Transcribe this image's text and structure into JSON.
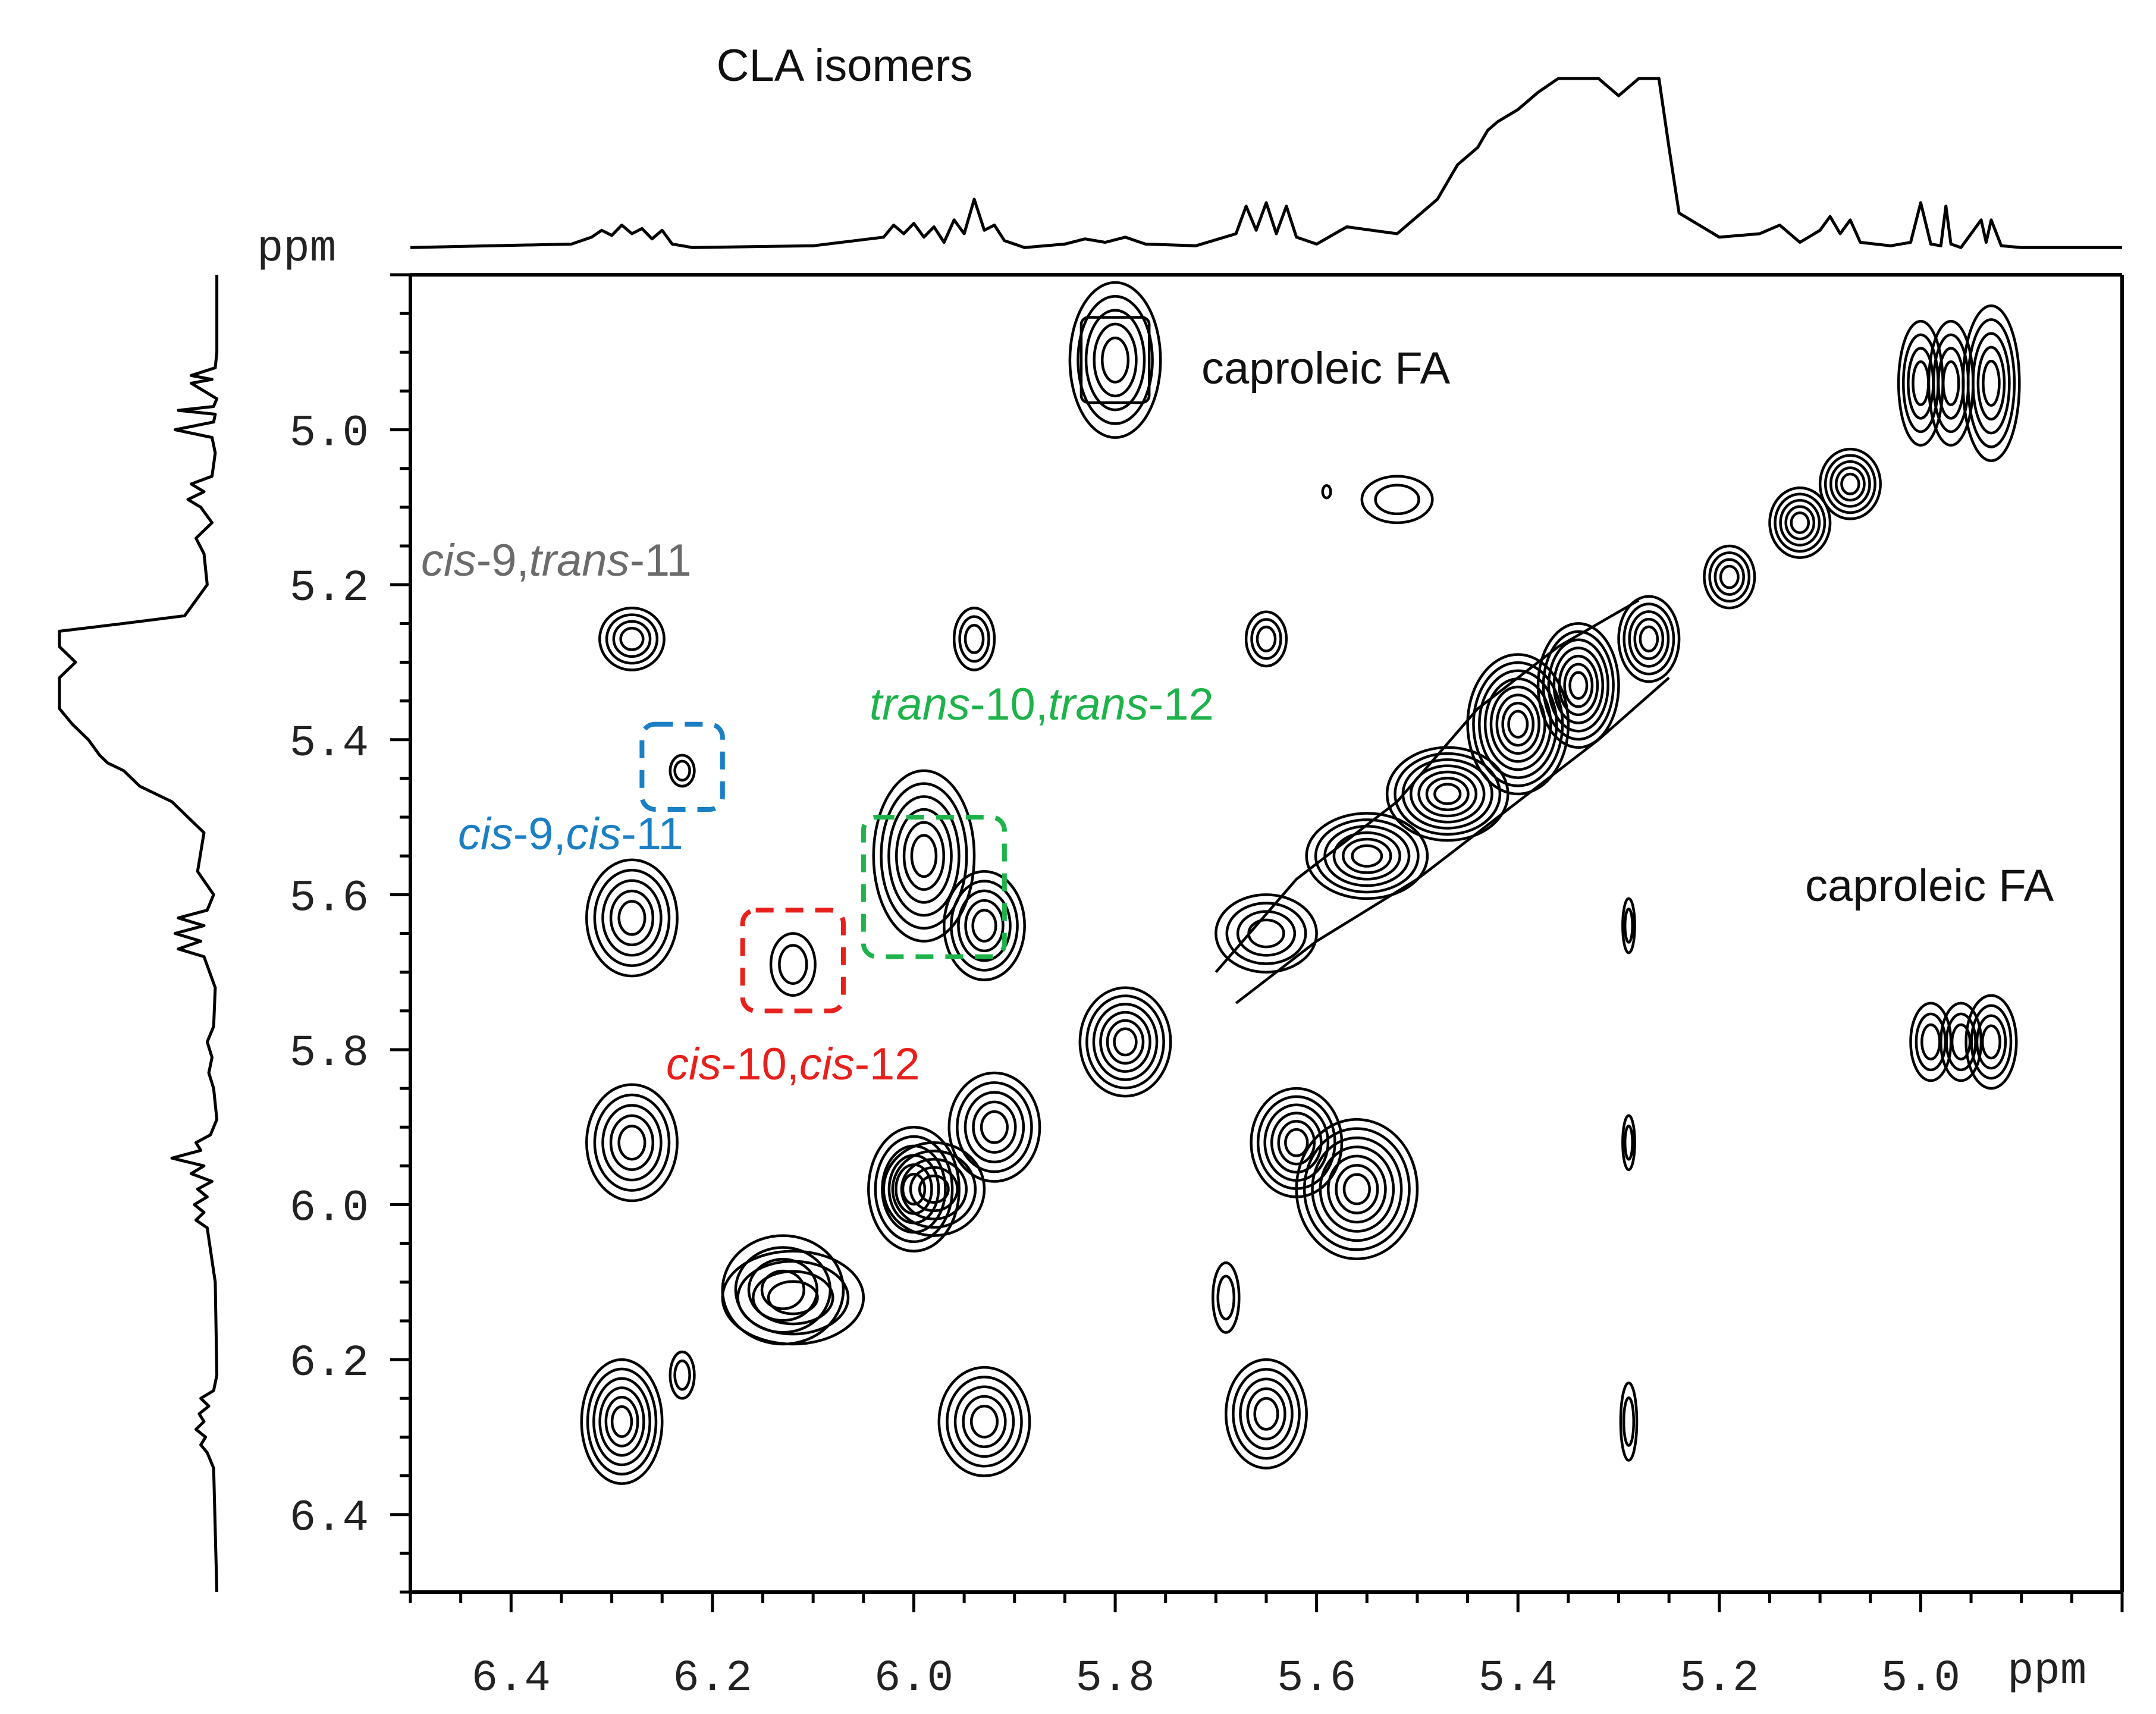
{
  "chart_data": {
    "type": "2D-NMR-COSY-contour",
    "title": "CLA isomers",
    "x_axis": {
      "unit": "ppm",
      "range": [
        6.5,
        4.8
      ],
      "ticks": [
        "6.4",
        "6.2",
        "6.0",
        "5.8",
        "5.6",
        "5.4",
        "5.2",
        "5.0"
      ]
    },
    "y_axis": {
      "unit": "ppm",
      "range": [
        4.8,
        6.5
      ],
      "ticks": [
        "5.0",
        "5.2",
        "5.4",
        "5.6",
        "5.8",
        "6.0",
        "6.2",
        "6.4"
      ]
    },
    "axis_unit_label": "ppm",
    "labels": {
      "caproleic_top": "caproleic FA",
      "caproleic_right": "caproleic FA",
      "c9t11": {
        "italic1": "cis",
        "plain1": "-9,",
        "italic2": "trans",
        "plain2": "-11"
      },
      "c9c11": {
        "italic1": "cis",
        "plain1": "-9,",
        "italic2": "cis",
        "plain2": "-11"
      },
      "t10t12": {
        "italic1": "trans",
        "plain1": "-10,",
        "italic2": "trans",
        "plain2": "-12"
      },
      "c10c12": {
        "italic1": "cis",
        "plain1": "-10,",
        "italic2": "cis",
        "plain2": "-12"
      }
    },
    "colors": {
      "c9t11": "#6b6b6b",
      "c9c11": "#1a7fc4",
      "t10t12": "#1db34a",
      "c10c12": "#e8201c",
      "ink": "#000000"
    },
    "highlight_boxes": [
      {
        "isomer": "cis-9,cis-11",
        "x_range": [
          6.27,
          6.19
        ],
        "y_range": [
          5.38,
          5.49
        ]
      },
      {
        "isomer": "trans-10,trans-12",
        "x_range": [
          6.05,
          5.91
        ],
        "y_range": [
          5.5,
          5.68
        ]
      },
      {
        "isomer": "cis-10,cis-12",
        "x_range": [
          6.17,
          6.07
        ],
        "y_range": [
          5.62,
          5.75
        ]
      }
    ],
    "cross_peaks": [
      {
        "x": 5.8,
        "y": 4.91,
        "rx": 0.045,
        "ry": 0.1,
        "n": 5,
        "shape": "block"
      },
      {
        "x": 5.0,
        "y": 4.94,
        "rx": 0.022,
        "ry": 0.08,
        "n": 4
      },
      {
        "x": 4.97,
        "y": 4.94,
        "rx": 0.022,
        "ry": 0.08,
        "n": 4
      },
      {
        "x": 4.93,
        "y": 4.94,
        "rx": 0.028,
        "ry": 0.1,
        "n": 5
      },
      {
        "x": 5.52,
        "y": 5.09,
        "rx": 0.035,
        "ry": 0.03,
        "n": 2
      },
      {
        "x": 5.59,
        "y": 5.08,
        "rx": 0.004,
        "ry": 0.008,
        "n": 1
      },
      {
        "x": 6.28,
        "y": 5.27,
        "rx": 0.032,
        "ry": 0.04,
        "n": 4
      },
      {
        "x": 5.94,
        "y": 5.27,
        "rx": 0.02,
        "ry": 0.04,
        "n": 3
      },
      {
        "x": 5.65,
        "y": 5.27,
        "rx": 0.02,
        "ry": 0.035,
        "n": 3
      },
      {
        "x": 6.23,
        "y": 5.44,
        "rx": 0.012,
        "ry": 0.02,
        "n": 2
      },
      {
        "x": 6.28,
        "y": 5.63,
        "rx": 0.045,
        "ry": 0.075,
        "n": 5
      },
      {
        "x": 5.99,
        "y": 5.55,
        "rx": 0.05,
        "ry": 0.11,
        "n": 6
      },
      {
        "x": 5.93,
        "y": 5.64,
        "rx": 0.04,
        "ry": 0.07,
        "n": 5
      },
      {
        "x": 6.12,
        "y": 5.69,
        "rx": 0.022,
        "ry": 0.04,
        "n": 2
      },
      {
        "x": 5.79,
        "y": 5.79,
        "rx": 0.045,
        "ry": 0.07,
        "n": 6
      },
      {
        "x": 4.99,
        "y": 5.79,
        "rx": 0.02,
        "ry": 0.05,
        "n": 3
      },
      {
        "x": 4.96,
        "y": 5.79,
        "rx": 0.02,
        "ry": 0.05,
        "n": 3
      },
      {
        "x": 4.93,
        "y": 5.79,
        "rx": 0.025,
        "ry": 0.06,
        "n": 4
      },
      {
        "x": 6.28,
        "y": 5.92,
        "rx": 0.045,
        "ry": 0.075,
        "n": 5
      },
      {
        "x": 5.92,
        "y": 5.9,
        "rx": 0.045,
        "ry": 0.07,
        "n": 5
      },
      {
        "x": 6.0,
        "y": 5.98,
        "rx": 0.045,
        "ry": 0.08,
        "n": 6
      },
      {
        "x": 5.62,
        "y": 5.92,
        "rx": 0.045,
        "ry": 0.07,
        "n": 6
      },
      {
        "x": 5.56,
        "y": 5.98,
        "rx": 0.06,
        "ry": 0.09,
        "n": 7
      },
      {
        "x": 5.29,
        "y": 5.64,
        "rx": 0.006,
        "ry": 0.035,
        "n": 2
      },
      {
        "x": 5.29,
        "y": 5.92,
        "rx": 0.006,
        "ry": 0.035,
        "n": 2
      },
      {
        "x": 5.29,
        "y": 6.28,
        "rx": 0.008,
        "ry": 0.05,
        "n": 2
      },
      {
        "x": 5.69,
        "y": 6.12,
        "rx": 0.013,
        "ry": 0.045,
        "n": 2
      },
      {
        "x": 6.13,
        "y": 6.11,
        "rx": 0.06,
        "ry": 0.07,
        "n": 4
      },
      {
        "x": 6.29,
        "y": 6.28,
        "rx": 0.04,
        "ry": 0.08,
        "n": 6
      },
      {
        "x": 6.23,
        "y": 6.22,
        "rx": 0.012,
        "ry": 0.03,
        "n": 2
      },
      {
        "x": 5.93,
        "y": 6.28,
        "rx": 0.045,
        "ry": 0.07,
        "n": 5
      },
      {
        "x": 5.65,
        "y": 6.27,
        "rx": 0.04,
        "ry": 0.07,
        "n": 5
      }
    ],
    "diagonal_peaks": [
      {
        "x": 6.12,
        "y": 6.12,
        "rx": 0.07,
        "ry": 0.06,
        "n": 4
      },
      {
        "x": 5.98,
        "y": 5.98,
        "rx": 0.05,
        "ry": 0.06,
        "n": 5
      },
      {
        "x": 5.65,
        "y": 5.65,
        "rx": 0.05,
        "ry": 0.05,
        "n": 4
      },
      {
        "x": 5.55,
        "y": 5.55,
        "rx": 0.06,
        "ry": 0.055,
        "n": 6
      },
      {
        "x": 5.47,
        "y": 5.47,
        "rx": 0.06,
        "ry": 0.06,
        "n": 7
      },
      {
        "x": 5.4,
        "y": 5.38,
        "rx": 0.05,
        "ry": 0.09,
        "n": 8
      },
      {
        "x": 5.34,
        "y": 5.33,
        "rx": 0.04,
        "ry": 0.08,
        "n": 7
      },
      {
        "x": 5.27,
        "y": 5.27,
        "rx": 0.03,
        "ry": 0.055,
        "n": 5
      },
      {
        "x": 5.19,
        "y": 5.19,
        "rx": 0.025,
        "ry": 0.04,
        "n": 4
      },
      {
        "x": 5.12,
        "y": 5.12,
        "rx": 0.03,
        "ry": 0.045,
        "n": 5
      },
      {
        "x": 5.07,
        "y": 5.07,
        "rx": 0.03,
        "ry": 0.045,
        "n": 5
      }
    ],
    "projection_1d": {
      "x_ppm": [
        6.5,
        6.34,
        6.32,
        6.31,
        6.3,
        6.29,
        6.28,
        6.27,
        6.26,
        6.25,
        6.24,
        6.22,
        6.1,
        6.03,
        6.02,
        6.01,
        6.0,
        5.99,
        5.98,
        5.97,
        5.96,
        5.95,
        5.94,
        5.93,
        5.92,
        5.91,
        5.89,
        5.85,
        5.83,
        5.81,
        5.79,
        5.77,
        5.72,
        5.68,
        5.67,
        5.66,
        5.65,
        5.64,
        5.63,
        5.62,
        5.6,
        5.57,
        5.52,
        5.48,
        5.46,
        5.44,
        5.43,
        5.42,
        5.4,
        5.38,
        5.36,
        5.34,
        5.32,
        5.3,
        5.28,
        5.26,
        5.25,
        5.24,
        5.22,
        5.2,
        5.16,
        5.14,
        5.12,
        5.1,
        5.09,
        5.08,
        5.07,
        5.06,
        5.03,
        5.01,
        5.0,
        4.99,
        4.98,
        4.975,
        4.97,
        4.96,
        4.94,
        4.935,
        4.93,
        4.92,
        4.9,
        4.85,
        4.8
      ],
      "intensity": [
        0.02,
        0.04,
        0.08,
        0.12,
        0.09,
        0.15,
        0.1,
        0.13,
        0.07,
        0.12,
        0.04,
        0.02,
        0.03,
        0.08,
        0.15,
        0.1,
        0.16,
        0.08,
        0.14,
        0.05,
        0.18,
        0.1,
        0.3,
        0.12,
        0.15,
        0.06,
        0.02,
        0.04,
        0.07,
        0.05,
        0.08,
        0.04,
        0.03,
        0.1,
        0.26,
        0.12,
        0.28,
        0.1,
        0.26,
        0.08,
        0.04,
        0.14,
        0.1,
        0.3,
        0.5,
        0.6,
        0.7,
        0.75,
        0.82,
        0.92,
        1.0,
        1.0,
        1.0,
        0.9,
        1.0,
        1.0,
        0.6,
        0.22,
        0.15,
        0.08,
        0.1,
        0.15,
        0.05,
        0.12,
        0.2,
        0.1,
        0.18,
        0.05,
        0.03,
        0.05,
        0.28,
        0.04,
        0.03,
        0.26,
        0.04,
        0.02,
        0.18,
        0.05,
        0.18,
        0.03,
        0.02,
        0.02,
        0.02
      ]
    }
  }
}
